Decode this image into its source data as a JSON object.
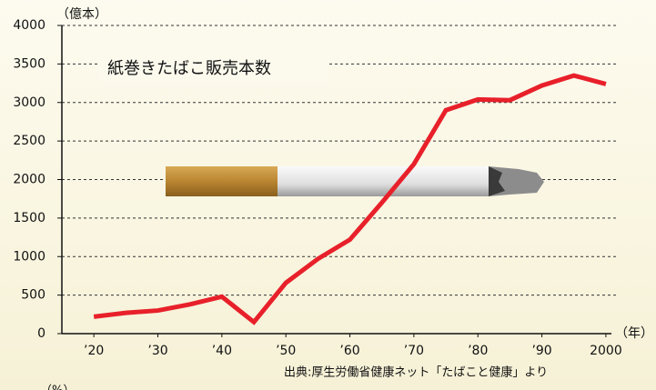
{
  "chart_data": {
    "type": "line",
    "title": "紙巻きたばこ販売本数",
    "y_label": "（億本）",
    "x_label": "（年）",
    "source": "出典:厚生労働省健康ネット「たばこと健康」より",
    "footer": "（%）",
    "x": [
      1920,
      1925,
      1930,
      1935,
      1940,
      1945,
      1950,
      1955,
      1960,
      1965,
      1970,
      1975,
      1980,
      1985,
      1990,
      1995,
      2000
    ],
    "values": [
      220,
      270,
      300,
      380,
      480,
      150,
      660,
      970,
      1220,
      1700,
      2200,
      2900,
      3040,
      3030,
      3220,
      3350,
      3240
    ],
    "color": "#e8202a",
    "xlim": [
      1915,
      2002
    ],
    "xticks": [
      {
        "value": 1920,
        "label": "’20"
      },
      {
        "value": 1930,
        "label": "’30"
      },
      {
        "value": 1940,
        "label": "’40"
      },
      {
        "value": 1950,
        "label": "’50"
      },
      {
        "value": 1960,
        "label": "’60"
      },
      {
        "value": 1970,
        "label": "’70"
      },
      {
        "value": 1980,
        "label": "’80"
      },
      {
        "value": 1990,
        "label": "’90"
      },
      2000
    ],
    "ylim": [
      0,
      4000
    ],
    "yticks": [
      0,
      500,
      1000,
      1500,
      2000,
      2500,
      3000,
      3500,
      4000
    ],
    "grid": true
  }
}
